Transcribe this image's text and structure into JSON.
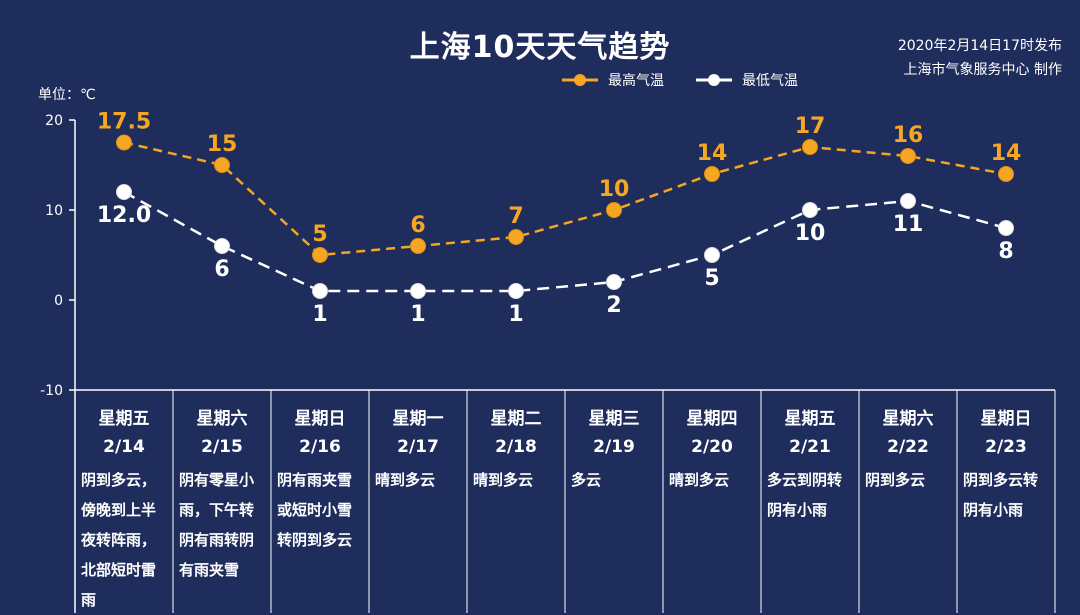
{
  "title": "上海10天天气趋势",
  "issued": "2020年2月14日17时发布",
  "publisher": "上海市气象服务中心 制作",
  "unit": "单位：℃",
  "legend": {
    "high": "最高气温",
    "low": "最低气温"
  },
  "colors": {
    "background": "#1f2d5c",
    "high": "#f5a623",
    "low": "#ffffff"
  },
  "chart_data": {
    "type": "line",
    "title": "上海10天天气趋势",
    "ylabel": "单位：℃",
    "ylim": [
      -10,
      20
    ],
    "yticks": [
      "20",
      "10",
      "0",
      "-10"
    ],
    "categories": [
      "2/14",
      "2/15",
      "2/16",
      "2/17",
      "2/18",
      "2/19",
      "2/20",
      "2/21",
      "2/22",
      "2/23"
    ],
    "series": [
      {
        "name": "最高气温",
        "values": [
          17.5,
          15,
          5,
          6,
          7,
          10,
          14,
          17,
          16,
          14
        ],
        "labels": [
          "17.5",
          "15",
          "5",
          "6",
          "7",
          "10",
          "14",
          "17",
          "16",
          "14"
        ]
      },
      {
        "name": "最低气温",
        "values": [
          12,
          6,
          1,
          1,
          1,
          2,
          5,
          10,
          11,
          8
        ],
        "labels": [
          "12.0",
          "6",
          "1",
          "1",
          "1",
          "2",
          "5",
          "10",
          "11",
          "8"
        ]
      }
    ],
    "grid": false,
    "legend_position": "top-right"
  },
  "days": [
    {
      "weekday": "星期五",
      "date": "2/14",
      "weather": [
        "阴到多云，",
        "傍晚到上半",
        "夜转阵雨，",
        "北部短时雷",
        "雨"
      ]
    },
    {
      "weekday": "星期六",
      "date": "2/15",
      "weather": [
        "阴有零星小",
        "雨，下午转",
        "阴有雨转阴",
        "有雨夹雪"
      ]
    },
    {
      "weekday": "星期日",
      "date": "2/16",
      "weather": [
        "阴有雨夹雪",
        "或短时小雪",
        "转阴到多云"
      ]
    },
    {
      "weekday": "星期一",
      "date": "2/17",
      "weather": [
        "晴到多云"
      ]
    },
    {
      "weekday": "星期二",
      "date": "2/18",
      "weather": [
        "晴到多云"
      ]
    },
    {
      "weekday": "星期三",
      "date": "2/19",
      "weather": [
        "多云"
      ]
    },
    {
      "weekday": "星期四",
      "date": "2/20",
      "weather": [
        "晴到多云"
      ]
    },
    {
      "weekday": "星期五",
      "date": "2/21",
      "weather": [
        "多云到阴转",
        "阴有小雨"
      ]
    },
    {
      "weekday": "星期六",
      "date": "2/22",
      "weather": [
        "阴到多云"
      ]
    },
    {
      "weekday": "星期日",
      "date": "2/23",
      "weather": [
        "阴到多云转",
        "阴有小雨"
      ]
    }
  ]
}
